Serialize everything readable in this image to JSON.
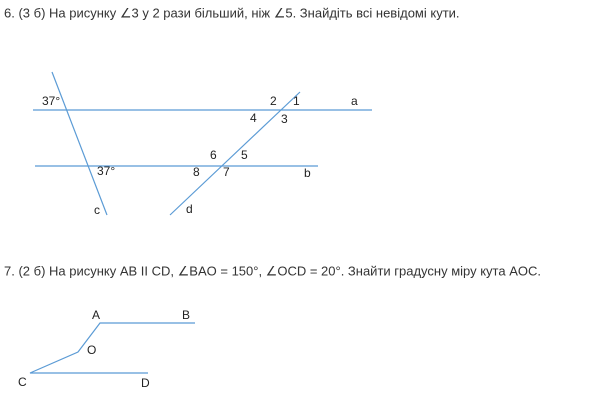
{
  "task6": {
    "text": "6. (3 б) На рисунку ∠3 у 2 рази більший, ніж  ∠5. Знайдіть всі невідомі кути.",
    "figure": {
      "labels": [
        "37°",
        "2",
        "1",
        "a",
        "4",
        "3",
        "6",
        "5",
        "8",
        "7",
        "b",
        "37°",
        "c",
        "d"
      ]
    }
  },
  "task7": {
    "text": "7. (2 б) На рисунку AB II CD, ∠BAO = 150°, ∠OCD = 20°. Знайти градусну міру кута AOC.",
    "figure": {
      "labels": [
        "A",
        "B",
        "O",
        "C",
        "D"
      ]
    }
  }
}
